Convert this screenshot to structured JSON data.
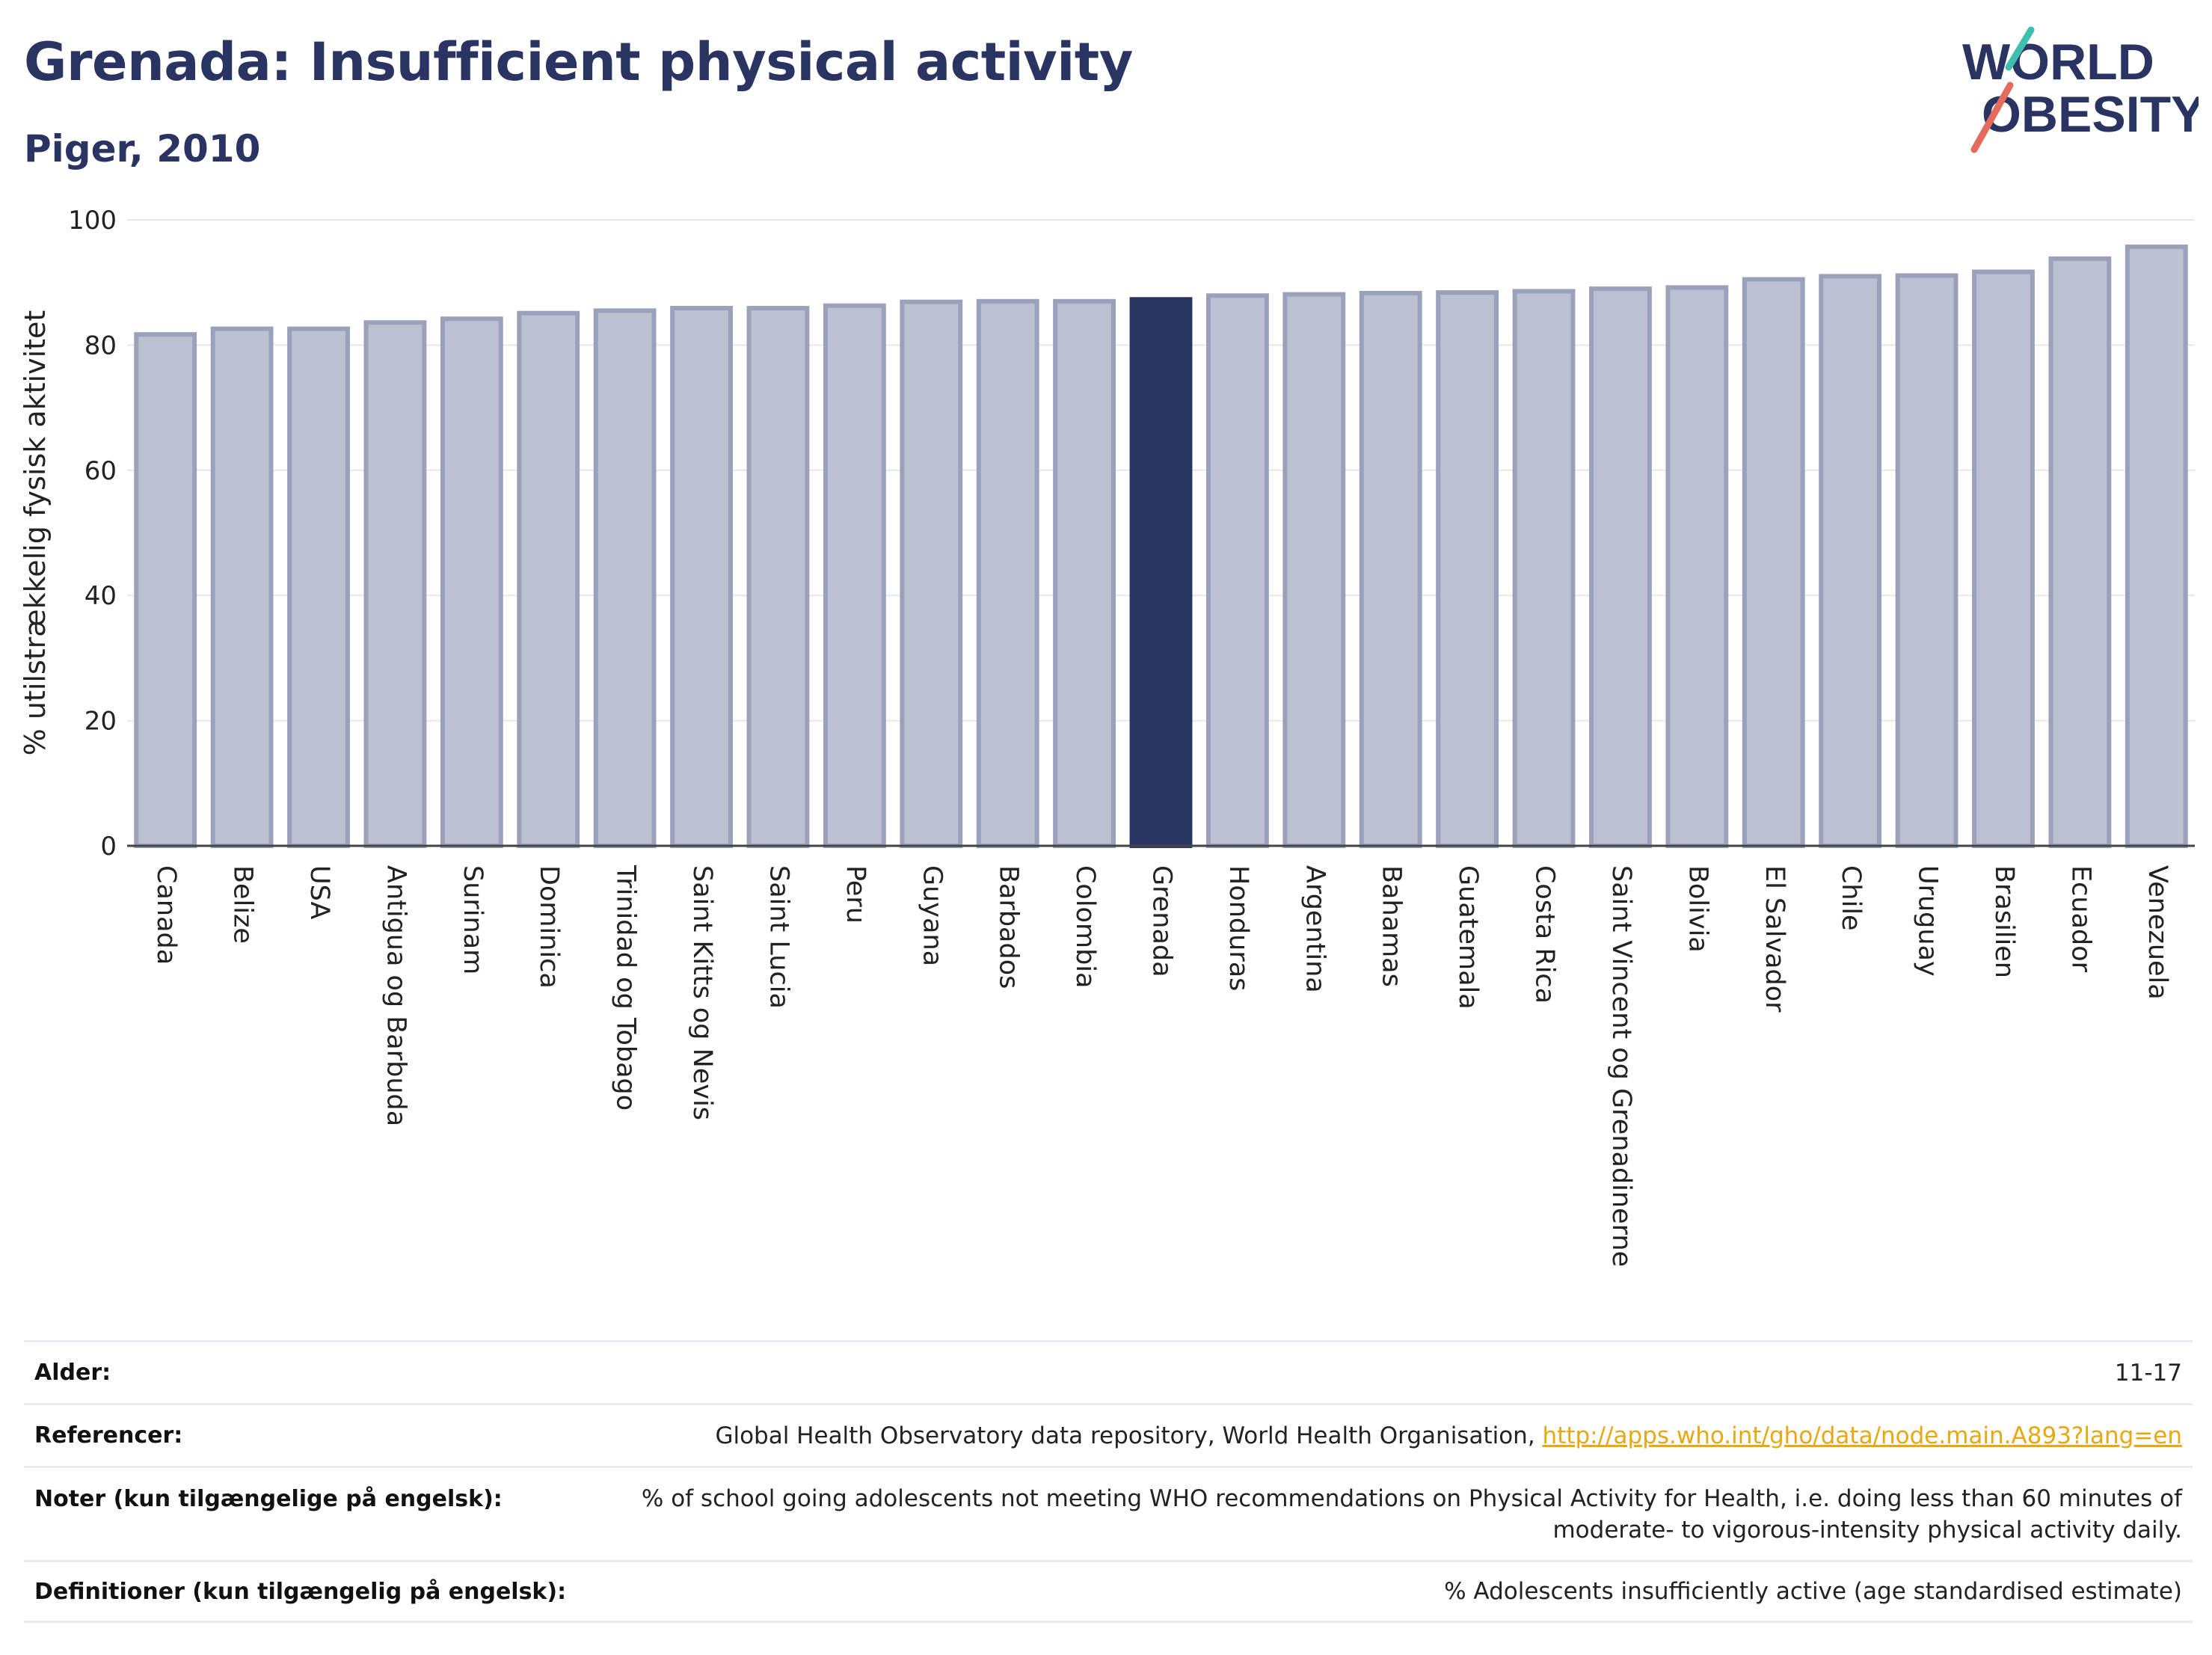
{
  "header": {
    "title": "Grenada: Insufficient physical activity",
    "subtitle": "Piger, 2010"
  },
  "logo": {
    "line1": "WORLD",
    "line2": "OBESITY"
  },
  "colors": {
    "bar": "#bcc1d1",
    "bar_stroke": "#9aa2bb",
    "highlight": "#2a3462",
    "grid": "#e6e8ee",
    "axis": "#444444"
  },
  "chart_data": {
    "type": "bar",
    "title": "Grenada: Insufficient physical activity",
    "subtitle": "Piger, 2010",
    "xlabel": "",
    "ylabel": "% utilstrækkelig fysisk aktivitet",
    "ylim": [
      0,
      100
    ],
    "yticks": [
      0,
      20,
      40,
      60,
      80,
      100
    ],
    "grid": true,
    "highlight": "Grenada",
    "categories": [
      "Canada",
      "Belize",
      "USA",
      "Antigua og Barbuda",
      "Surinam",
      "Dominica",
      "Trinidad og Tobago",
      "Saint Kitts og Nevis",
      "Saint Lucia",
      "Peru",
      "Guyana",
      "Barbados",
      "Colombia",
      "Grenada",
      "Honduras",
      "Argentina",
      "Bahamas",
      "Guatemala",
      "Costa Rica",
      "Saint Vincent og Grenadinerne",
      "Bolivia",
      "El Salvador",
      "Chile",
      "Uruguay",
      "Brasilien",
      "Ecuador",
      "Venezuela"
    ],
    "values": [
      81.7,
      82.6,
      82.6,
      83.6,
      84.2,
      85.1,
      85.5,
      85.9,
      85.9,
      86.3,
      86.9,
      87.0,
      87.0,
      87.3,
      87.9,
      88.1,
      88.3,
      88.4,
      88.6,
      89.0,
      89.2,
      90.5,
      91.0,
      91.1,
      91.7,
      93.8,
      95.7
    ]
  },
  "meta": [
    {
      "label": "Alder:",
      "value": "11-17"
    },
    {
      "label": "Referencer:",
      "value": "Global Health Observatory data repository, World Health Organisation, ",
      "link": "http://apps.who.int/gho/data/node.main.A893?lang=en"
    },
    {
      "label": "Noter (kun tilgængelige på engelsk):",
      "value": "% of school going adolescents not meeting WHO recommendations on Physical Activity for Health, i.e. doing less than 60 minutes of moderate- to vigorous-intensity physical activity daily."
    },
    {
      "label": "Definitioner (kun tilgængelig på engelsk):",
      "value": "% Adolescents insufficiently active (age standardised estimate)"
    }
  ]
}
